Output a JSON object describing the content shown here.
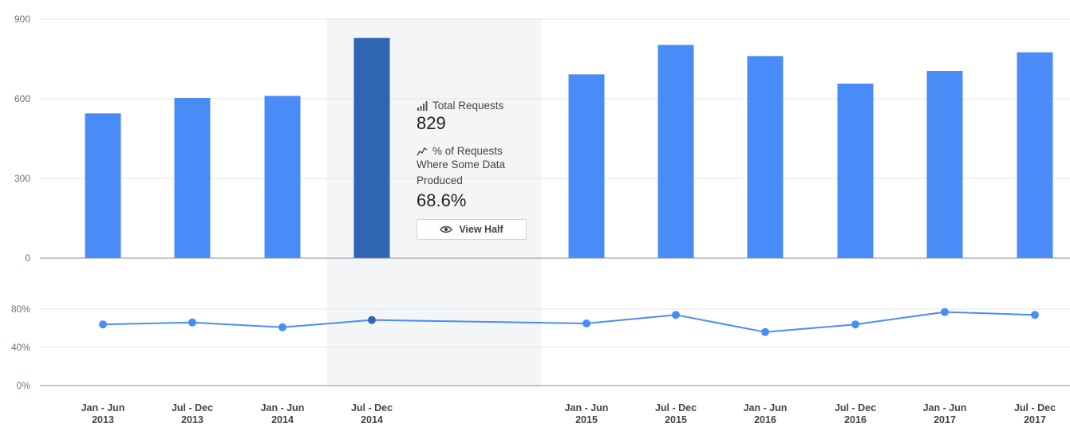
{
  "chart_data": [
    {
      "type": "bar",
      "categories": [
        "Jan - Jun 2013",
        "Jul - Dec 2013",
        "Jan - Jun 2014",
        "Jul - Dec 2014",
        "Jan - Jun 2015",
        "Jul - Dec 2015",
        "Jan - Jun 2016",
        "Jul - Dec 2016",
        "Jan - Jun 2017",
        "Jul - Dec 2017"
      ],
      "category_lines": [
        [
          "Jan - Jun",
          "2013"
        ],
        [
          "Jul - Dec",
          "2013"
        ],
        [
          "Jan - Jun",
          "2014"
        ],
        [
          "Jul - Dec",
          "2014"
        ],
        [
          "Jan - Jun",
          "2015"
        ],
        [
          "Jul - Dec",
          "2015"
        ],
        [
          "Jan - Jun",
          "2016"
        ],
        [
          "Jul - Dec",
          "2016"
        ],
        [
          "Jan - Jun",
          "2017"
        ],
        [
          "Jul - Dec",
          "2017"
        ]
      ],
      "values": [
        545,
        603,
        611,
        829,
        692,
        803,
        761,
        657,
        705,
        775
      ],
      "ylim": [
        0,
        900
      ],
      "yticks": [
        "0",
        "300",
        "600",
        "900"
      ],
      "highlight_index": 3,
      "grid": true,
      "colors": {
        "bar": "#4a8cf7",
        "highlight": "#2f65b3"
      }
    },
    {
      "type": "line",
      "categories": [
        "Jan - Jun 2013",
        "Jul - Dec 2013",
        "Jan - Jun 2014",
        "Jul - Dec 2014",
        "Jan - Jun 2015",
        "Jul - Dec 2015",
        "Jan - Jun 2016",
        "Jul - Dec 2016",
        "Jan - Jun 2017",
        "Jul - Dec 2017"
      ],
      "values": [
        64,
        66,
        61,
        68.6,
        65,
        74,
        56,
        64,
        77,
        74
      ],
      "ylim": [
        0,
        100
      ],
      "yticks": [
        "0%",
        "40%",
        "80%"
      ],
      "highlight_index": 3,
      "colors": {
        "line": "#4a8cf7",
        "point": "#4a8cf7",
        "highlight": "#2f65b3"
      }
    }
  ],
  "tooltip": {
    "metric1_label": "Total Requests",
    "metric1_value": "829",
    "metric2_label_line1": "% of Requests",
    "metric2_label_line2": "Where Some Data",
    "metric2_label_line3": "Produced",
    "metric2_value": "68.6%",
    "button_label": "View Half",
    "icons": {
      "metric1": "bar-chart-icon",
      "metric2": "trend-line-icon",
      "button": "eye-icon"
    }
  }
}
